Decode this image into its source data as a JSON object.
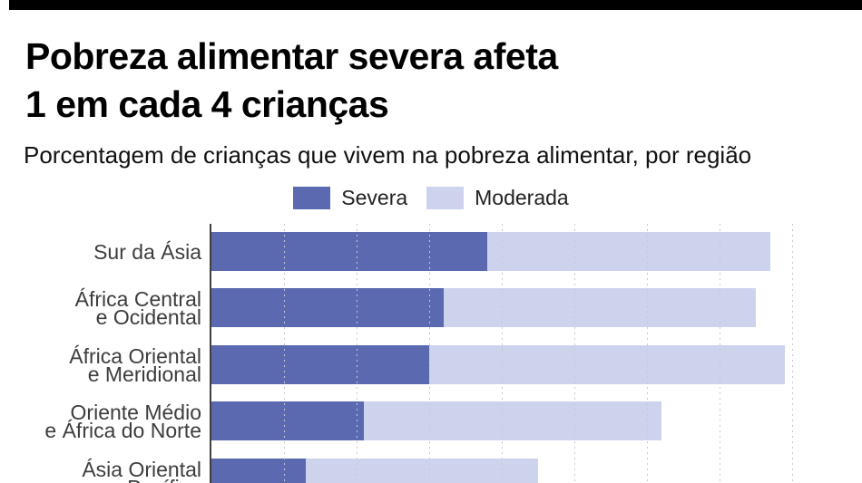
{
  "page": {
    "background": "#ffffff",
    "top_bar_color": "#000000"
  },
  "header": {
    "title_line1": "Pobreza alimentar severa afeta",
    "title_line2": "1 em cada 4 crianças",
    "subtitle": "Porcentagem de crianças que vivem na pobreza alimentar, por região"
  },
  "chart_data": {
    "type": "bar",
    "orientation": "horizontal",
    "stacked": true,
    "title": "Porcentagem de crianças que vivem na pobreza alimentar, por região",
    "categories": [
      "Sur da Ásia",
      "África Central e Ocidental",
      "África Oriental e Meridional",
      "Oriente Médio e África do Norte",
      "Ásia Oriental e Pacífico"
    ],
    "category_lines": [
      [
        "Sur da Ásia"
      ],
      [
        "África Central",
        "e Ocidental"
      ],
      [
        "África Oriental",
        "e Meridional"
      ],
      [
        "Oriente Médio",
        "e África do Norte"
      ],
      [
        "Ásia Oriental",
        "e Pacífico"
      ]
    ],
    "series": [
      {
        "name": "Severa",
        "color": "#5b69b0",
        "values": [
          38,
          32,
          30,
          21,
          13
        ]
      },
      {
        "name": "Moderada",
        "color": "#cdd3ed",
        "values": [
          39,
          43,
          49,
          41,
          32
        ]
      }
    ],
    "totals": [
      77,
      75,
      79,
      62,
      45
    ],
    "unit": "%",
    "xlim": [
      0,
      80
    ],
    "gridline_step": 10,
    "grid": "dashed-vertical",
    "legend_position": "top-center",
    "axis_color": "#3f3f3f",
    "gridline_color": "#c7c8d0",
    "label_color": "#3d3d3d"
  }
}
